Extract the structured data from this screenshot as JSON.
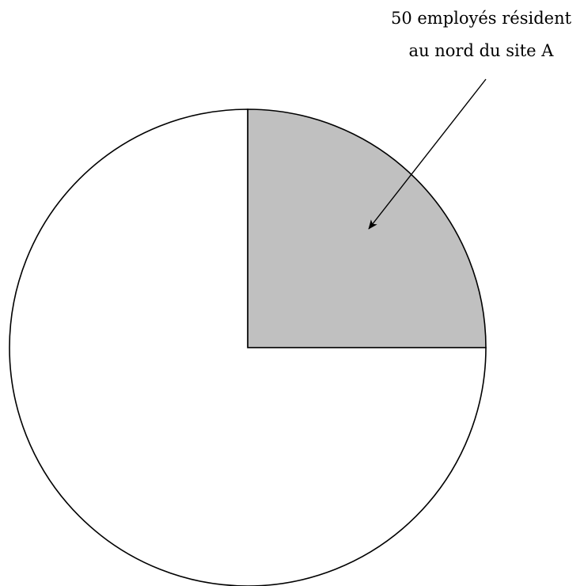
{
  "chart_data": {
    "type": "pie",
    "slices": [
      {
        "value": 25,
        "color": "#c0c0c0",
        "highlighted": true
      },
      {
        "value": 75,
        "color": "#ffffff",
        "highlighted": false
      }
    ],
    "annotation": {
      "lines": [
        "50 employés résident",
        "au nord du site A"
      ],
      "points_to": "highlighted-slice"
    },
    "stroke_color": "#000000",
    "title": "",
    "legend": "none"
  }
}
